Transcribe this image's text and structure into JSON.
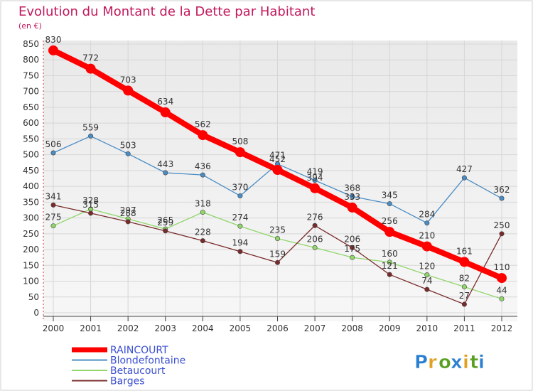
{
  "chart_data": {
    "type": "line",
    "title": "Evolution du Montant de la Dette par Habitant",
    "subtitle": "(en €)",
    "xlabel": "",
    "ylabel": "",
    "x": [
      2000,
      2001,
      2002,
      2003,
      2004,
      2005,
      2006,
      2007,
      2008,
      2009,
      2010,
      2011,
      2012
    ],
    "ylim": [
      0,
      850
    ],
    "yticks": [
      0,
      50,
      100,
      150,
      200,
      250,
      300,
      350,
      400,
      450,
      500,
      550,
      600,
      650,
      700,
      750,
      800,
      850
    ],
    "grid": true,
    "legend_position": "bottom-left",
    "series": [
      {
        "name": "RAINCOURT",
        "color": "#ff0000",
        "emphasis": true,
        "values": [
          830,
          772,
          703,
          634,
          562,
          508,
          452,
          394,
          333,
          256,
          210,
          161,
          110
        ]
      },
      {
        "name": "Blondefontaine",
        "color": "#4a8cc4",
        "values": [
          506,
          559,
          503,
          443,
          436,
          370,
          471,
          419,
          368,
          345,
          284,
          427,
          362
        ]
      },
      {
        "name": "Betaucourt",
        "color": "#90d66a",
        "values": [
          275,
          328,
          297,
          265,
          318,
          274,
          235,
          206,
          175,
          160,
          120,
          82,
          44
        ]
      },
      {
        "name": "Barges",
        "color": "#7a2a2a",
        "values": [
          341,
          315,
          288,
          259,
          228,
          194,
          159,
          276,
          206,
          121,
          74,
          27,
          250
        ]
      }
    ]
  },
  "brand": {
    "logo_text": "Proxiti",
    "letters": [
      "P",
      "r",
      "o",
      "x",
      "i",
      "t",
      "i"
    ],
    "letter_colors": [
      "#2b7fd0",
      "#e0a020",
      "#5aa020",
      "#2b7fd0",
      "#e0a020",
      "#5aa020",
      "#2b7fd0"
    ]
  }
}
